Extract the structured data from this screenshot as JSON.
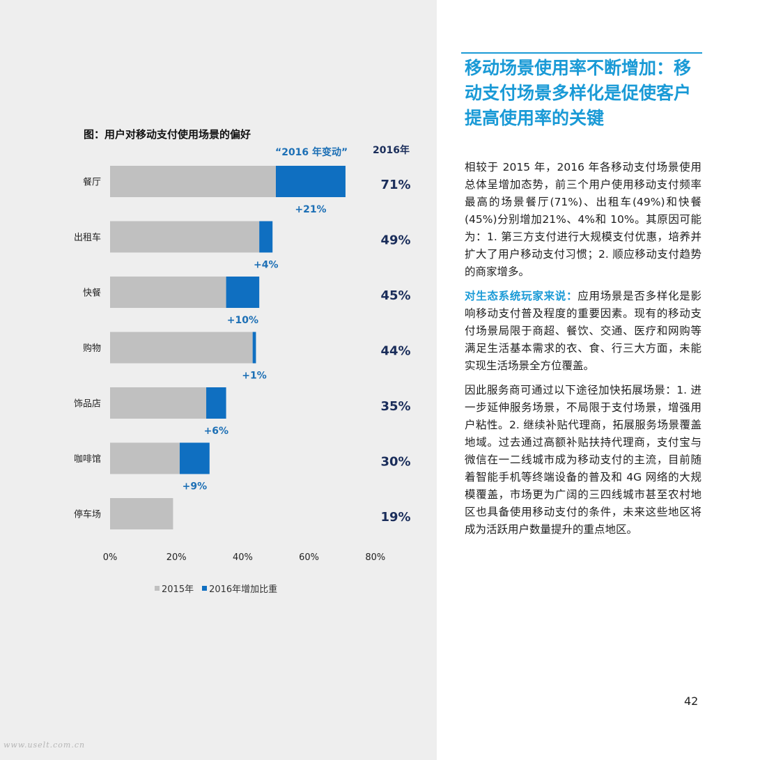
{
  "chart_data": {
    "type": "bar",
    "orientation": "horizontal",
    "stacked": true,
    "title": "图：用户对移动支付使用场景的偏好",
    "change_header": "“2016 年变动”",
    "year_header": "2016年",
    "categories": [
      "餐厅",
      "出租车",
      "快餐",
      "购物",
      "饰品店",
      "咖啡馆",
      "停车场"
    ],
    "series": [
      {
        "name": "2015年",
        "color": "#c0c0c0",
        "values": [
          50,
          45,
          35,
          43,
          29,
          21,
          19
        ]
      },
      {
        "name": "2016年增加比重",
        "color": "#0f6fc1",
        "values": [
          21,
          4,
          10,
          1,
          6,
          9,
          0
        ]
      }
    ],
    "change_labels": [
      "+21%",
      "+4%",
      "+10%",
      "+1%",
      "+6%",
      "+9%",
      ""
    ],
    "totals_2016": [
      "71%",
      "49%",
      "45%",
      "44%",
      "35%",
      "30%",
      "19%"
    ],
    "xlim": [
      0,
      80
    ],
    "xticks": [
      0,
      20,
      40,
      60,
      80
    ],
    "xtick_labels": [
      "0%",
      "20%",
      "40%",
      "60%",
      "80%"
    ],
    "legend_position": "bottom",
    "grid": false
  },
  "article": {
    "heading": "移动场景使用率不断增加：移动支付场景多样化是促使客户提高使用率的关键",
    "p1": "相较于 2015 年，2016 年各移动支付场景使用总体呈增加态势，前三个用户使用移动支付频率最高的场景餐厅(71%)、出租车(49%)和快餐(45%)分别增加21%、4%和 10%。其原因可能为：1. 第三方支付进行大规模支付优惠，培养并扩大了用户移动支付习惯；2. 顺应移动支付趋势的商家增多。",
    "p2_lead": "对生态系统玩家来说：",
    "p2_rest": "应用场景是否多样化是影响移动支付普及程度的重要因素。现有的移动支付场景局限于商超、餐饮、交通、医疗和网购等满足生活基本需求的衣、食、行三大方面，未能实现生活场景全方位覆盖。",
    "p3": "因此服务商可通过以下途径加快拓展场景：1. 进一步延伸服务场景，不局限于支付场景，增强用户粘性。2. 继续补贴代理商，拓展服务场景覆盖地域。过去通过高额补贴扶持代理商，支付宝与微信在一二线城市成为移动支付的主流，目前随着智能手机等终端设备的普及和 4G 网络的大规模覆盖，市场更为广阔的三四线城市甚至农村地区也具备使用移动支付的条件，未来这些地区将成为活跃用户数量提升的重点地区。"
  },
  "page_number": "42",
  "watermark": "www.uselt.com.cn"
}
